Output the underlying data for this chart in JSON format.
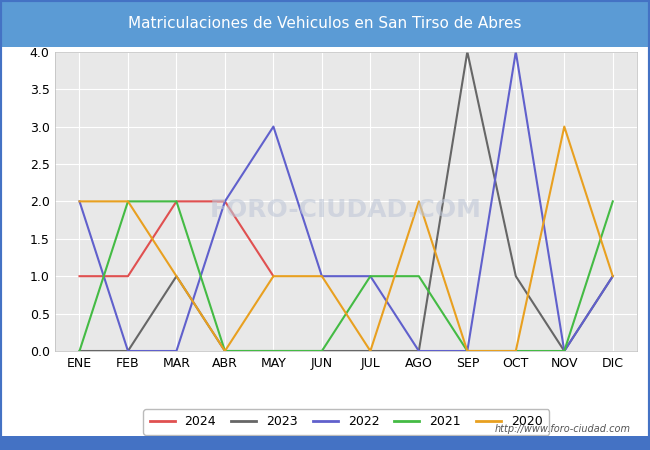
{
  "title": "Matriculaciones de Vehiculos en San Tirso de Abres",
  "months": [
    "ENE",
    "FEB",
    "MAR",
    "ABR",
    "MAY",
    "JUN",
    "JUL",
    "AGO",
    "SEP",
    "OCT",
    "NOV",
    "DIC"
  ],
  "series": {
    "2024": [
      1,
      1,
      2,
      2,
      1,
      null,
      null,
      null,
      null,
      null,
      null,
      null
    ],
    "2023": [
      0,
      0,
      1,
      0,
      0,
      0,
      0,
      0,
      4,
      1,
      0,
      1
    ],
    "2022": [
      2,
      0,
      0,
      2,
      3,
      1,
      1,
      0,
      0,
      4,
      0,
      1
    ],
    "2021": [
      0,
      2,
      2,
      0,
      0,
      0,
      1,
      1,
      0,
      0,
      0,
      2
    ],
    "2020": [
      2,
      2,
      1,
      0,
      1,
      1,
      0,
      2,
      0,
      0,
      3,
      1
    ]
  },
  "colors": {
    "2024": "#e05050",
    "2023": "#666666",
    "2022": "#6060cc",
    "2021": "#44bb44",
    "2020": "#e8a020"
  },
  "ylim": [
    0.0,
    4.0
  ],
  "yticks": [
    0.0,
    0.5,
    1.0,
    1.5,
    2.0,
    2.5,
    3.0,
    3.5,
    4.0
  ],
  "title_bg_color": "#5b9bd5",
  "plot_bg_color": "#e8e8e8",
  "fig_bg_color": "#ffffff",
  "outer_border_color": "#4472c4",
  "grid_color": "#ffffff",
  "watermark_text": "http://www.foro-ciudad.com",
  "watermark_plot": "FORO-CIUDAD.COM",
  "legend_order": [
    "2024",
    "2023",
    "2022",
    "2021",
    "2020"
  ]
}
